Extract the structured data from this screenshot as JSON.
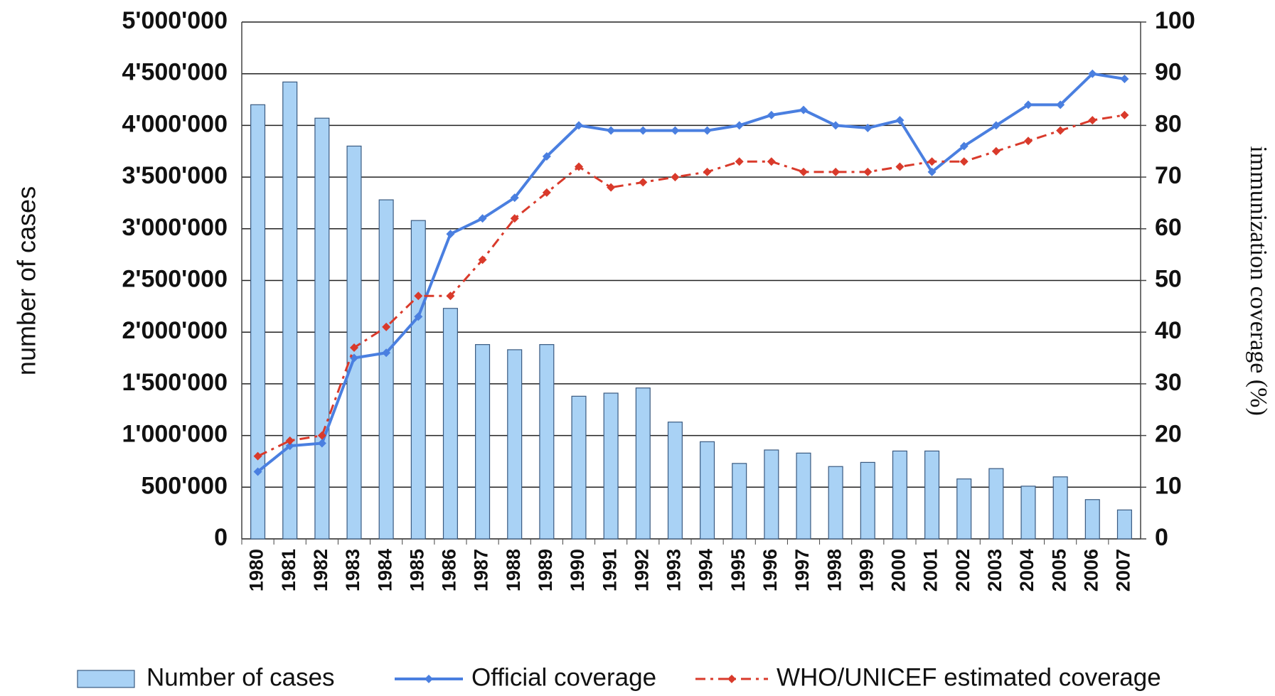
{
  "chart_data": {
    "type": "bar",
    "categories": [
      "1980",
      "1981",
      "1982",
      "1983",
      "1984",
      "1985",
      "1986",
      "1987",
      "1988",
      "1989",
      "1990",
      "1991",
      "1992",
      "1993",
      "1994",
      "1995",
      "1996",
      "1997",
      "1998",
      "1999",
      "2000",
      "2001",
      "2002",
      "2003",
      "2004",
      "2005",
      "2006",
      "2007"
    ],
    "y_label": "number of cases",
    "y2_label": "immunization coverage (%)",
    "ylim": [
      0,
      5000000
    ],
    "yticks": [
      0,
      {
        "value": 500000,
        "label": "500'000"
      },
      {
        "value": 1000000,
        "label": "1'000'000"
      },
      {
        "value": 1500000,
        "label": "1'500'000"
      },
      {
        "value": 2000000,
        "label": "2'000'000"
      },
      {
        "value": 2500000,
        "label": "2'500'000"
      },
      {
        "value": 3000000,
        "label": "3'000'000"
      },
      {
        "value": 3500000,
        "label": "3'500'000"
      },
      {
        "value": 4000000,
        "label": "4'000'000"
      },
      {
        "value": 4500000,
        "label": "4'500'000"
      },
      {
        "value": 5000000,
        "label": "5'000'000"
      }
    ],
    "y2lim": [
      0,
      100
    ],
    "y2ticks": [
      0,
      10,
      20,
      30,
      40,
      50,
      60,
      70,
      80,
      90,
      100
    ],
    "grid": true,
    "legend": "bottom",
    "series": [
      {
        "name": "Number of cases",
        "type": "bar",
        "color": "#a9d2f5",
        "values": [
          4200000,
          4420000,
          4070000,
          3800000,
          3280000,
          3080000,
          2230000,
          1880000,
          1830000,
          1880000,
          1380000,
          1410000,
          1460000,
          1130000,
          940000,
          730000,
          860000,
          830000,
          700000,
          740000,
          850000,
          850000,
          580000,
          680000,
          510000,
          600000,
          380000,
          280000
        ]
      },
      {
        "name": "Official coverage",
        "type": "line",
        "axis": "y2",
        "color": "#4a7fe0",
        "values": [
          13,
          18,
          18.5,
          35,
          36,
          43,
          59,
          62,
          66,
          74,
          80,
          79,
          79,
          79,
          79,
          80,
          82,
          83,
          80,
          79.5,
          81,
          71,
          76,
          80,
          84,
          84,
          90,
          89
        ]
      },
      {
        "name": "WHO/UNICEF estimated coverage",
        "type": "line",
        "axis": "y2",
        "color": "#d93a2b",
        "dashed": true,
        "values": [
          16,
          19,
          20,
          37,
          41,
          47,
          47,
          54,
          62,
          67,
          72,
          68,
          69,
          70,
          71,
          73,
          73,
          71,
          71,
          71,
          72,
          73,
          73,
          75,
          77,
          79,
          81,
          82
        ]
      }
    ]
  }
}
